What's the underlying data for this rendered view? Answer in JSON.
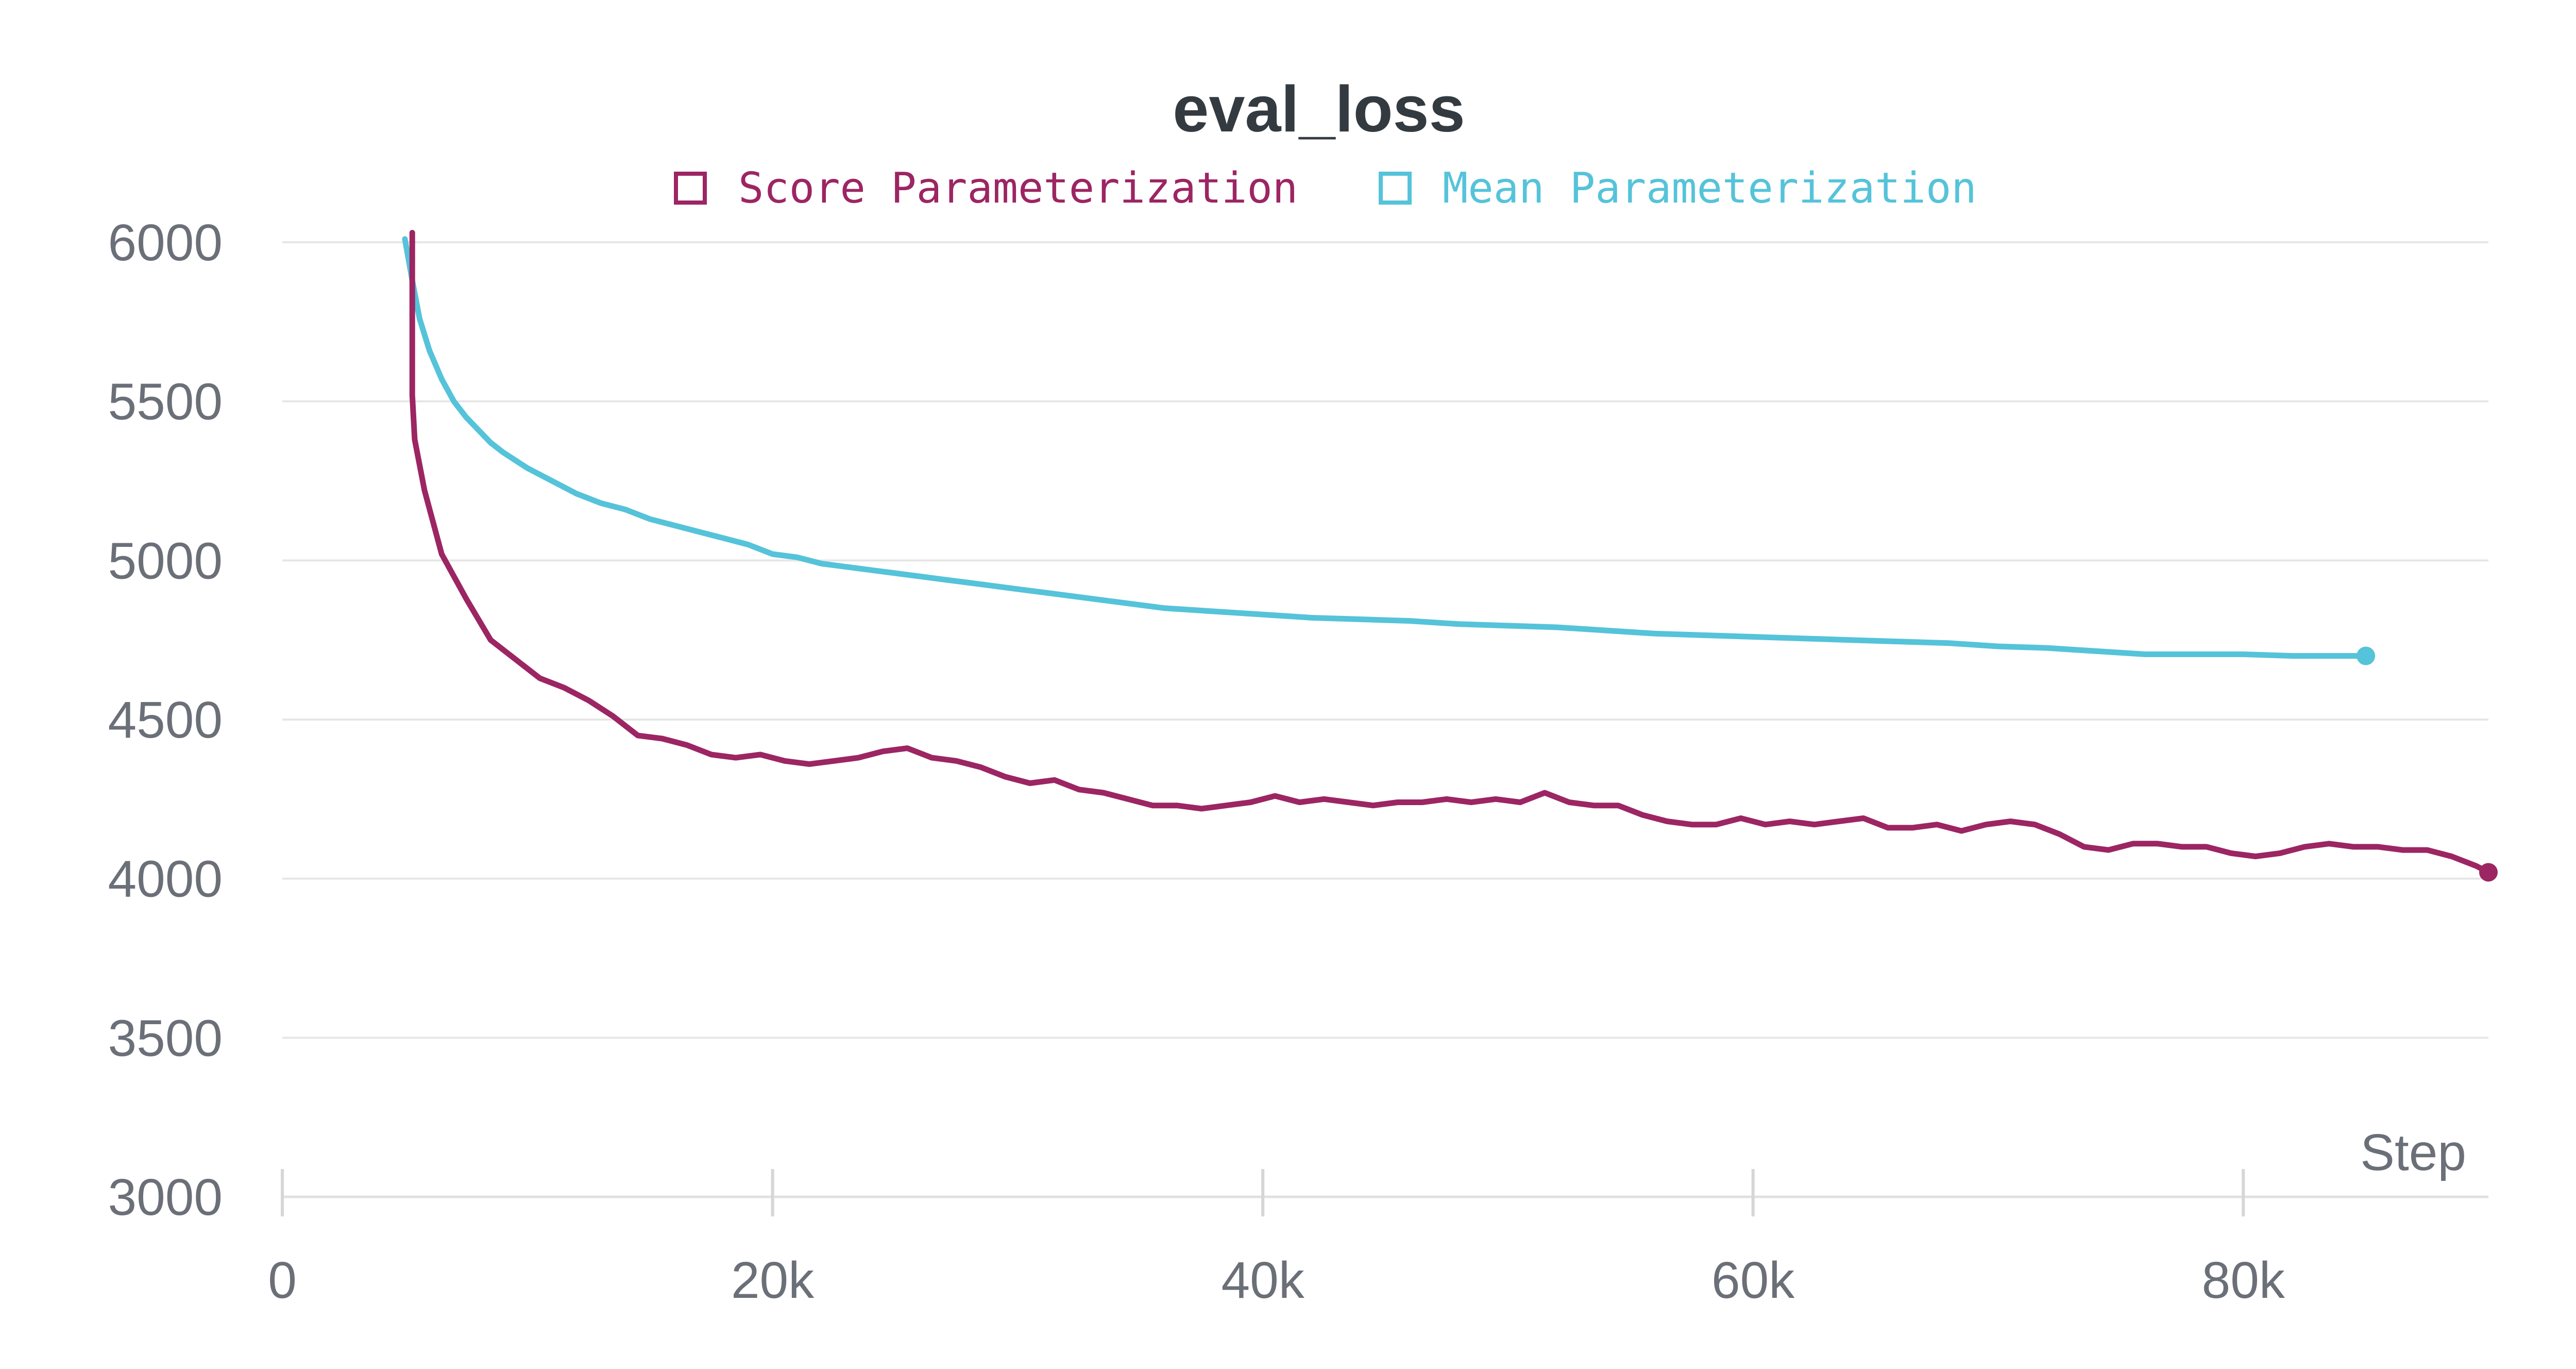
{
  "chart_data": {
    "type": "line",
    "title": "eval_loss",
    "xlabel": "Step",
    "ylabel": "",
    "xlim": [
      0,
      90000
    ],
    "ylim": [
      3000,
      6000
    ],
    "x_ticks": [
      0,
      20000,
      40000,
      60000,
      80000
    ],
    "x_tick_labels": [
      "0",
      "20k",
      "40k",
      "60k",
      "80k"
    ],
    "y_ticks": [
      3000,
      3500,
      4000,
      4500,
      5000,
      5500,
      6000
    ],
    "y_tick_labels": [
      "3000",
      "3500",
      "4000",
      "4500",
      "5000",
      "5500",
      "6000"
    ],
    "grid": true,
    "legend_position": "top-center",
    "series": [
      {
        "name": "Score Parameterization",
        "color": "#9c2563",
        "x": [
          5300,
          5300,
          5400,
          5800,
          6500,
          7500,
          8500,
          9500,
          10500,
          11500,
          12500,
          13500,
          14500,
          15500,
          16500,
          17500,
          18500,
          19500,
          20500,
          21500,
          22500,
          23500,
          24500,
          25500,
          26500,
          27500,
          28500,
          29500,
          30500,
          31500,
          32500,
          33500,
          34500,
          35500,
          36500,
          37500,
          38500,
          39500,
          40500,
          41500,
          42500,
          43500,
          44500,
          45500,
          46500,
          47500,
          48500,
          49500,
          50500,
          51500,
          52500,
          53500,
          54500,
          55500,
          56500,
          57500,
          58500,
          59500,
          60500,
          61500,
          62500,
          63500,
          64500,
          65500,
          66500,
          67500,
          68500,
          69500,
          70500,
          71500,
          72500,
          73500,
          74500,
          75500,
          76500,
          77500,
          78500,
          79500,
          80500,
          81500,
          82500,
          83500,
          84500,
          85500,
          86500,
          87500,
          88500,
          89500,
          90000
        ],
        "y": [
          6030,
          5520,
          5380,
          5220,
          5020,
          4880,
          4750,
          4690,
          4630,
          4600,
          4560,
          4510,
          4450,
          4440,
          4420,
          4390,
          4380,
          4390,
          4370,
          4360,
          4370,
          4380,
          4400,
          4410,
          4380,
          4370,
          4350,
          4320,
          4300,
          4310,
          4280,
          4270,
          4250,
          4230,
          4230,
          4220,
          4230,
          4240,
          4260,
          4240,
          4250,
          4240,
          4230,
          4240,
          4240,
          4250,
          4240,
          4250,
          4240,
          4270,
          4240,
          4230,
          4230,
          4200,
          4180,
          4170,
          4170,
          4190,
          4170,
          4180,
          4170,
          4180,
          4190,
          4160,
          4160,
          4170,
          4150,
          4170,
          4180,
          4170,
          4140,
          4100,
          4090,
          4110,
          4110,
          4100,
          4100,
          4080,
          4070,
          4080,
          4100,
          4110,
          4100,
          4100,
          4090,
          4090,
          4070,
          4040,
          4020
        ]
      },
      {
        "name": "Mean Parameterization",
        "color": "#55c3d9",
        "x": [
          5000,
          5300,
          5600,
          6000,
          6500,
          7000,
          7500,
          8000,
          8500,
          9000,
          10000,
          11000,
          12000,
          13000,
          14000,
          15000,
          16000,
          17000,
          18000,
          19000,
          20000,
          21000,
          22000,
          23000,
          24000,
          25000,
          26000,
          27000,
          28000,
          29000,
          30000,
          32000,
          34000,
          36000,
          38000,
          40000,
          42000,
          44000,
          46000,
          48000,
          50000,
          52000,
          54000,
          56000,
          58000,
          60000,
          62000,
          64000,
          66000,
          68000,
          70000,
          72000,
          74000,
          76000,
          78000,
          80000,
          82000,
          85000
        ],
        "y": [
          6010,
          5880,
          5760,
          5660,
          5570,
          5500,
          5450,
          5410,
          5370,
          5340,
          5290,
          5250,
          5210,
          5180,
          5160,
          5130,
          5110,
          5090,
          5070,
          5050,
          5020,
          5010,
          4990,
          4980,
          4970,
          4960,
          4950,
          4940,
          4930,
          4920,
          4910,
          4890,
          4870,
          4850,
          4840,
          4830,
          4820,
          4815,
          4810,
          4800,
          4795,
          4790,
          4780,
          4770,
          4765,
          4760,
          4755,
          4750,
          4745,
          4740,
          4730,
          4725,
          4715,
          4705,
          4705,
          4705,
          4700,
          4700
        ]
      }
    ]
  }
}
